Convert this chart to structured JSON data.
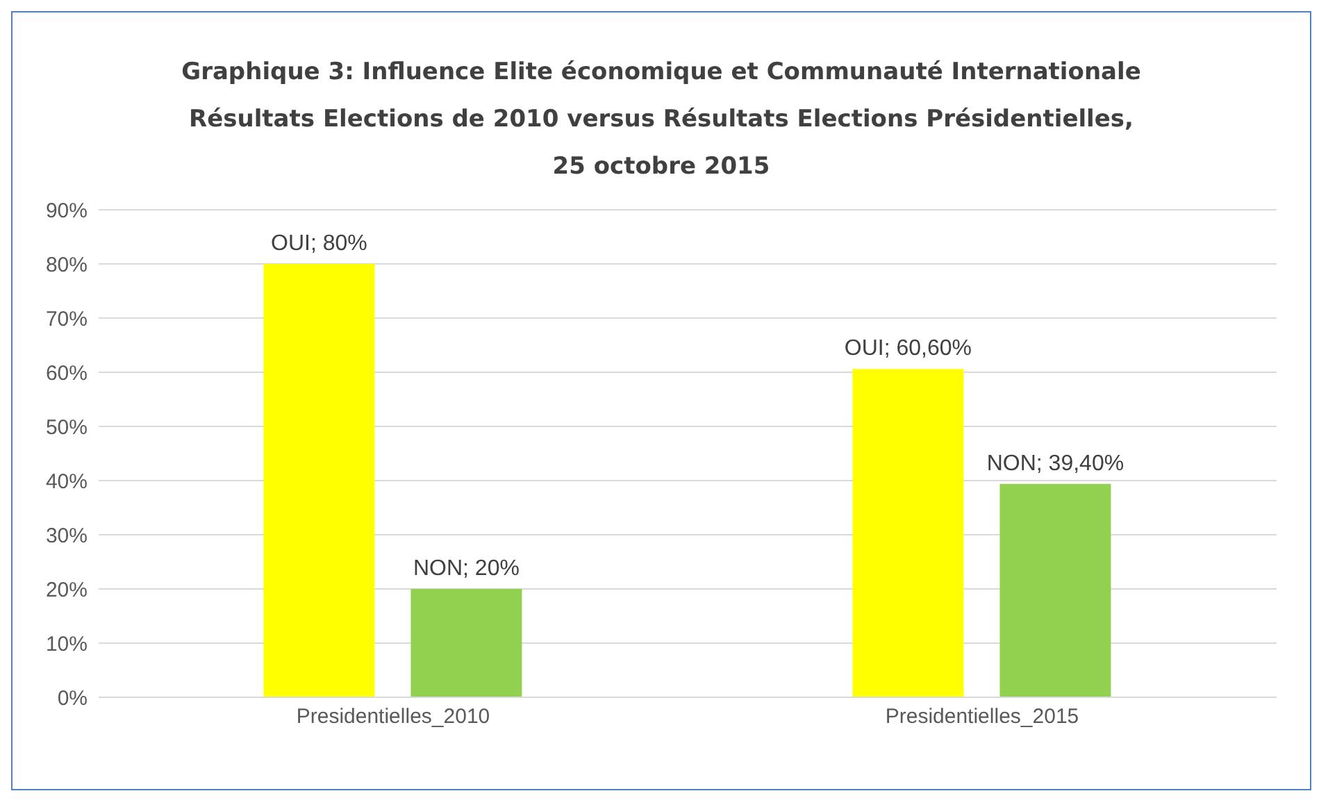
{
  "chart_data": {
    "type": "bar",
    "title": "Graphique 3: Influence Elite économique et Communauté Internationale",
    "subtitle": "Résultats Elections de 2010 versus Résultats Elections Présidentielles, 25 octobre 2015",
    "categories": [
      "Presidentielles_2010",
      "Presidentielles_2015"
    ],
    "series": [
      {
        "color": "#ffff00",
        "values": [
          80,
          60.6
        ],
        "value_labels": [
          "OUI; 80%",
          "OUI; 60,60%"
        ]
      },
      {
        "color": "#92d050",
        "values": [
          20,
          39.4
        ],
        "value_labels": [
          "NON; 20%",
          "NON; 39,40%"
        ]
      }
    ],
    "ylim": [
      0,
      90
    ],
    "yticks": [
      {
        "value": 0,
        "label": "0%"
      },
      {
        "value": 10,
        "label": "10%"
      },
      {
        "value": 20,
        "label": "20%"
      },
      {
        "value": 30,
        "label": "30%"
      },
      {
        "value": 40,
        "label": "40%"
      },
      {
        "value": 50,
        "label": "50%"
      },
      {
        "value": 60,
        "label": "60%"
      },
      {
        "value": 70,
        "label": "70%"
      },
      {
        "value": 80,
        "label": "80%"
      },
      {
        "value": 90,
        "label": "90%"
      }
    ],
    "grid": "y",
    "legend": false
  }
}
